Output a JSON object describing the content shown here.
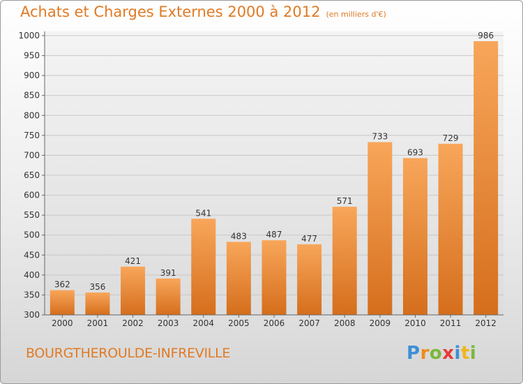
{
  "title": "Achats et Charges Externes 2000 à 2012",
  "subtitle": "(en milliers d'€)",
  "commune": "BOURGTHEROULDE-INFREVILLE",
  "logo": {
    "letters": [
      "P",
      "r",
      "o",
      "x",
      "i",
      "t",
      "i"
    ],
    "colors": [
      "#3d8fd6",
      "#f08a1c",
      "#7ab83a",
      "#e83a3a",
      "#3d8fd6",
      "#f0b51c",
      "#7ab83a"
    ]
  },
  "colors": {
    "bar_top": "#f8a65a",
    "bar_bottom": "#d56e1c",
    "accent": "#e07a24",
    "grid": "#c8c8c8"
  },
  "chart_data": {
    "type": "bar",
    "categories": [
      "2000",
      "2001",
      "2002",
      "2003",
      "2004",
      "2005",
      "2006",
      "2007",
      "2008",
      "2009",
      "2010",
      "2011",
      "2012"
    ],
    "values": [
      362,
      356,
      421,
      391,
      541,
      483,
      487,
      477,
      571,
      733,
      693,
      729,
      986
    ],
    "data_labels": [
      "362",
      "356",
      "421",
      "391",
      "541",
      "483",
      "487",
      "477",
      "571",
      "733",
      "693",
      "729",
      "986"
    ],
    "yticks": [
      300,
      350,
      400,
      450,
      500,
      550,
      600,
      650,
      700,
      750,
      800,
      850,
      900,
      950,
      1000
    ],
    "ytick_labels": [
      "300",
      "350",
      "400",
      "450",
      "500",
      "550",
      "600",
      "650",
      "700",
      "750",
      "800",
      "850",
      "900",
      "950",
      "1000"
    ],
    "ylim": [
      300,
      1000
    ],
    "grid": true,
    "legend": false
  }
}
